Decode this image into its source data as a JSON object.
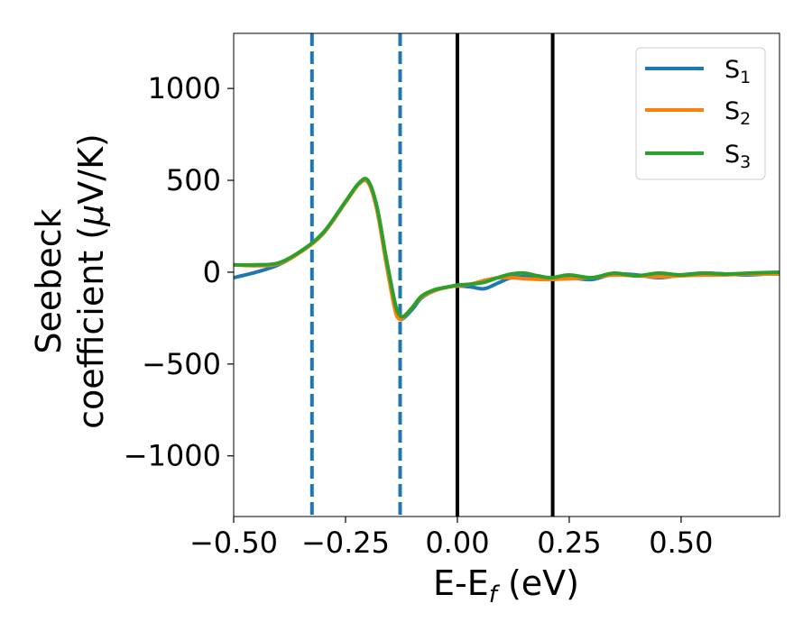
{
  "chart_data": {
    "type": "line",
    "xlabel": "E-E",
    "xlabel_sub": "f",
    "xlabel_unit": " (eV)",
    "ylabel_line1": "Seebeck",
    "ylabel_line2": "coefficient  (",
    "ylabel_mu": "μ",
    "ylabel_unit": "V/K)",
    "xlim": [
      -0.5,
      0.72
    ],
    "ylim": [
      -1330,
      1300
    ],
    "xticks": [
      -0.5,
      -0.25,
      0.0,
      0.25,
      0.5
    ],
    "xtick_labels": [
      "−0.50",
      "−0.25",
      "0.00",
      "0.25",
      "0.50"
    ],
    "yticks": [
      -1000,
      -500,
      0,
      500,
      1000
    ],
    "ytick_labels": [
      "−1000",
      "−500",
      "0",
      "500",
      "1000"
    ],
    "grid": false,
    "legend_position": "top-right",
    "vlines": [
      {
        "x": -0.325,
        "style": "dashed",
        "color": "#1f77b4"
      },
      {
        "x": -0.128,
        "style": "dashed",
        "color": "#1f77b4"
      },
      {
        "x": 0.0,
        "style": "solid",
        "color": "#000000"
      },
      {
        "x": 0.213,
        "style": "solid",
        "color": "#000000"
      }
    ],
    "series": [
      {
        "name": "S",
        "name_sub": "1",
        "color": "#1f77b4",
        "x": [
          -0.5,
          -0.45,
          -0.4,
          -0.35,
          -0.3,
          -0.25,
          -0.22,
          -0.2,
          -0.18,
          -0.16,
          -0.14,
          -0.13,
          -0.12,
          -0.1,
          -0.08,
          -0.05,
          -0.02,
          0.0,
          0.03,
          0.06,
          0.09,
          0.12,
          0.15,
          0.2,
          0.25,
          0.3,
          0.35,
          0.4,
          0.45,
          0.5,
          0.55,
          0.6,
          0.65,
          0.72
        ],
        "y": [
          -30,
          0,
          40,
          110,
          210,
          380,
          480,
          490,
          350,
          80,
          -180,
          -250,
          -250,
          -200,
          -140,
          -100,
          -80,
          -75,
          -80,
          -90,
          -60,
          -30,
          -25,
          -35,
          -30,
          -40,
          -10,
          -15,
          -30,
          -15,
          -5,
          -10,
          -15,
          -5
        ]
      },
      {
        "name": "S",
        "name_sub": "2",
        "color": "#ff7f0e",
        "x": [
          -0.5,
          -0.45,
          -0.4,
          -0.35,
          -0.3,
          -0.25,
          -0.22,
          -0.2,
          -0.18,
          -0.16,
          -0.14,
          -0.13,
          -0.12,
          -0.1,
          -0.08,
          -0.05,
          -0.02,
          0.0,
          0.03,
          0.06,
          0.09,
          0.12,
          0.15,
          0.2,
          0.25,
          0.3,
          0.35,
          0.4,
          0.45,
          0.5,
          0.55,
          0.6,
          0.65,
          0.72
        ],
        "y": [
          40,
          35,
          45,
          110,
          210,
          380,
          480,
          490,
          340,
          60,
          -200,
          -255,
          -245,
          -190,
          -135,
          -100,
          -80,
          -75,
          -65,
          -45,
          -30,
          -30,
          -35,
          -40,
          -35,
          -30,
          -15,
          -20,
          -25,
          -20,
          -15,
          -15,
          -10,
          -10
        ]
      },
      {
        "name": "S",
        "name_sub": "3",
        "color": "#2ca02c",
        "x": [
          -0.5,
          -0.45,
          -0.4,
          -0.35,
          -0.3,
          -0.25,
          -0.22,
          -0.2,
          -0.18,
          -0.16,
          -0.14,
          -0.13,
          -0.12,
          -0.1,
          -0.08,
          -0.05,
          -0.02,
          0.0,
          0.03,
          0.06,
          0.09,
          0.12,
          0.15,
          0.18,
          0.21,
          0.25,
          0.3,
          0.35,
          0.4,
          0.45,
          0.5,
          0.55,
          0.6,
          0.65,
          0.72
        ],
        "y": [
          40,
          40,
          50,
          115,
          215,
          385,
          485,
          500,
          360,
          90,
          -160,
          -230,
          -240,
          -190,
          -130,
          -95,
          -80,
          -70,
          -65,
          -55,
          -30,
          -10,
          -5,
          -20,
          -30,
          -15,
          -30,
          -5,
          -20,
          -5,
          -15,
          -5,
          -10,
          -5,
          0
        ]
      }
    ]
  }
}
